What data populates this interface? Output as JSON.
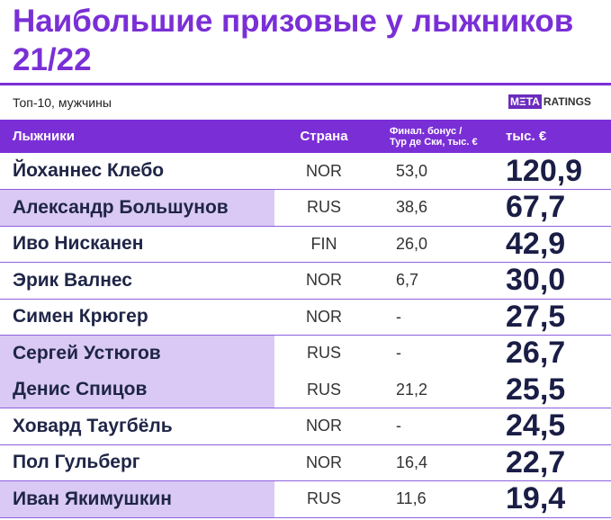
{
  "header": {
    "title": "Наибольшие призовые у лыжников 21/22",
    "subtitle": "Топ-10, мужчины",
    "logo": {
      "box": "MΞTA",
      "text": "RATINGS"
    }
  },
  "table": {
    "columns": [
      "Лыжники",
      "Страна",
      [
        "Финал. бонус /",
        "Тур де Ски, тыс. €"
      ],
      "тыс. €"
    ],
    "rows": [
      [
        "Йоханнес Клебо",
        "NOR",
        "53,0",
        "120,9"
      ],
      [
        "Александр Большунов",
        "RUS",
        "38,6",
        "67,7"
      ],
      [
        "Иво Нисканен",
        "FIN",
        "26,0",
        "42,9"
      ],
      [
        "Эрик Валнес",
        "NOR",
        "6,7",
        "30,0"
      ],
      [
        "Симен Крюгер",
        "NOR",
        "-",
        "27,5"
      ],
      [
        "Сергей Устюгов",
        "RUS",
        "-",
        "26,7"
      ],
      [
        "Денис Спицов",
        "RUS",
        "21,2",
        "25,5"
      ],
      [
        "Ховард Таугбёль",
        "NOR",
        "-",
        "24,5"
      ],
      [
        "Пол Гульберг",
        "NOR",
        "16,4",
        "22,7"
      ],
      [
        "Иван Якимушкин",
        "RUS",
        "11,6",
        "19,4"
      ]
    ]
  }
}
